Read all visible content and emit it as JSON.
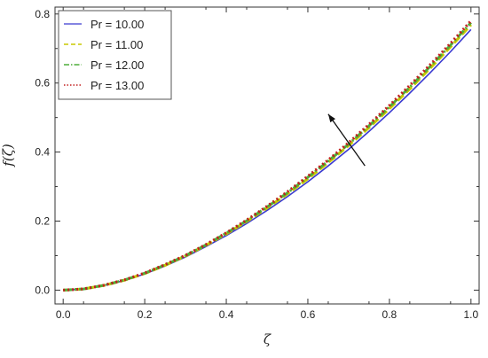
{
  "chart_data": {
    "type": "line",
    "title": "",
    "xlabel": "ζ",
    "ylabel": "f(ζ)",
    "xlim": [
      -0.02,
      1.02
    ],
    "ylim": [
      -0.04,
      0.82
    ],
    "xticks": [
      "0.0",
      "0.2",
      "0.4",
      "0.6",
      "0.8",
      "1.0"
    ],
    "yticks": [
      "0.0",
      "0.2",
      "0.4",
      "0.6",
      "0.8"
    ],
    "legend_position": "top-left",
    "grid": false,
    "x": [
      0,
      0.05,
      0.1,
      0.15,
      0.2,
      0.25,
      0.3,
      0.35,
      0.4,
      0.45,
      0.5,
      0.55,
      0.6,
      0.65,
      0.7,
      0.75,
      0.8,
      0.85,
      0.9,
      0.95,
      1.0
    ],
    "series": [
      {
        "name": "Pr = 10.00",
        "color": "#3a3ad0",
        "style": "solid",
        "values": [
          0.0,
          0.0032,
          0.0135,
          0.028,
          0.047,
          0.07,
          0.096,
          0.126,
          0.158,
          0.193,
          0.231,
          0.271,
          0.314,
          0.36,
          0.408,
          0.46,
          0.514,
          0.571,
          0.63,
          0.691,
          0.755
        ]
      },
      {
        "name": "Pr = 11.00",
        "color": "#c8c800",
        "style": "dashed",
        "values": [
          0.0,
          0.0033,
          0.0138,
          0.0287,
          0.0483,
          0.072,
          0.099,
          0.13,
          0.163,
          0.199,
          0.238,
          0.279,
          0.323,
          0.37,
          0.419,
          0.471,
          0.526,
          0.583,
          0.643,
          0.705,
          0.769
        ]
      },
      {
        "name": "Pr = 12.00",
        "color": "#4fae3a",
        "style": "dashdot",
        "values": [
          0.0,
          0.0034,
          0.014,
          0.0292,
          0.049,
          0.073,
          0.1,
          0.131,
          0.165,
          0.201,
          0.241,
          0.282,
          0.327,
          0.374,
          0.423,
          0.476,
          0.531,
          0.588,
          0.648,
          0.71,
          0.775
        ]
      },
      {
        "name": "Pr = 13.00",
        "color": "#c21f1f",
        "style": "dotted",
        "values": [
          0.0,
          0.0034,
          0.0142,
          0.0295,
          0.0495,
          0.074,
          0.101,
          0.132,
          0.166,
          0.203,
          0.243,
          0.285,
          0.33,
          0.377,
          0.427,
          0.48,
          0.535,
          0.593,
          0.653,
          0.715,
          0.78
        ]
      }
    ],
    "annotation": {
      "type": "arrow",
      "from": [
        0.74,
        0.36
      ],
      "to": [
        0.65,
        0.51
      ]
    }
  }
}
